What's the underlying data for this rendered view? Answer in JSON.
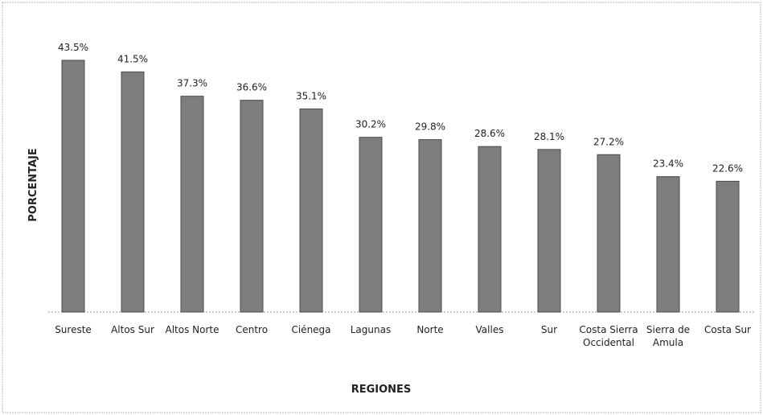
{
  "chart_data": {
    "type": "bar",
    "xlabel": "REGIONES",
    "ylabel": "PORCENTAJE",
    "categories": [
      "Sureste",
      "Altos Sur",
      "Altos Norte",
      "Centro",
      "Ciénega",
      "Lagunas",
      "Norte",
      "Valles",
      "Sur",
      "Costa Sierra Occidental",
      "Sierra de Amula",
      "Costa Sur"
    ],
    "values": [
      43.5,
      41.5,
      37.3,
      36.6,
      35.1,
      30.2,
      29.8,
      28.6,
      28.1,
      27.2,
      23.4,
      22.6
    ],
    "value_labels": [
      "43.5%",
      "41.5%",
      "37.3%",
      "36.6%",
      "35.1%",
      "30.2%",
      "29.8%",
      "28.6%",
      "28.1%",
      "27.2%",
      "23.4%",
      "22.6%"
    ],
    "color": "#7d7d7d"
  }
}
